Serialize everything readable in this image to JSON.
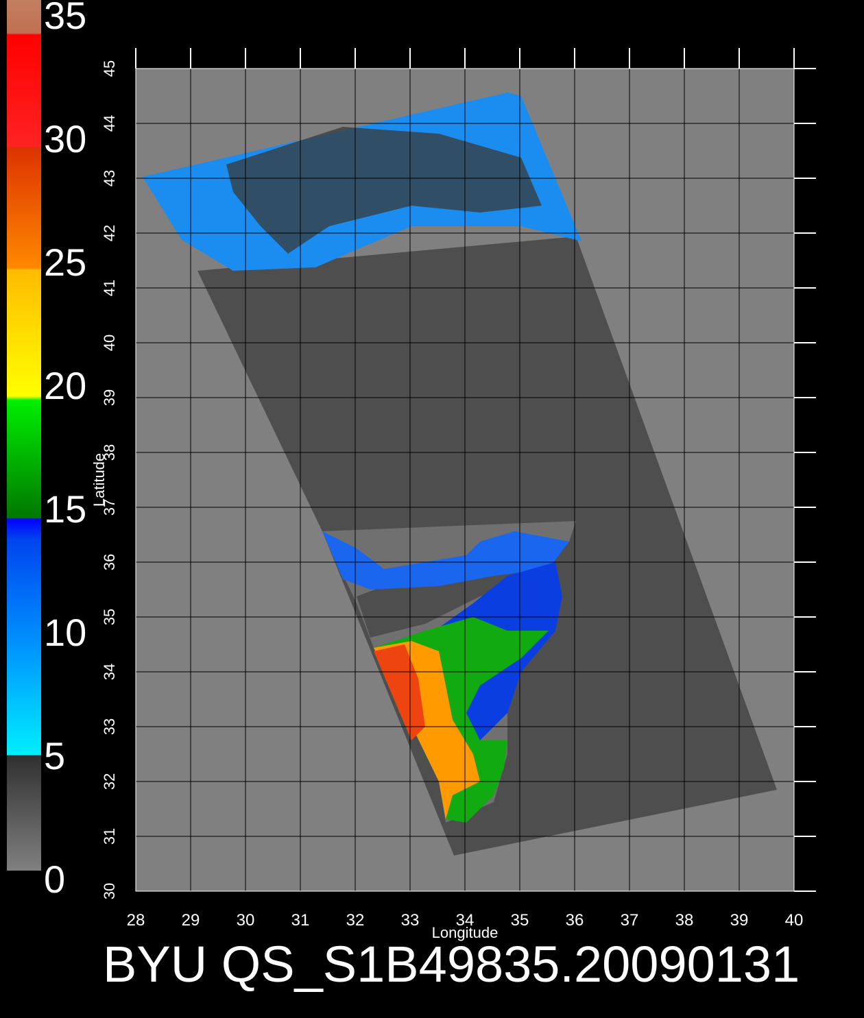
{
  "chart_data": {
    "type": "map",
    "title": "BYU QS_S1B49835.20090131",
    "x_label": "Longitude",
    "y_label": "Latitude",
    "xlim": [
      28,
      40
    ],
    "xticks": [
      28,
      29,
      30,
      31,
      32,
      33,
      34,
      35,
      36,
      37,
      38,
      39,
      40
    ],
    "ylim": [
      30,
      45
    ],
    "yticks": [
      30,
      31,
      32,
      33,
      34,
      35,
      36,
      37,
      38,
      39,
      40,
      41,
      42,
      43,
      44,
      45
    ],
    "colorbar": {
      "lim": [
        0,
        35
      ],
      "ticks": [
        0,
        5,
        10,
        15,
        20,
        25,
        30,
        35
      ]
    },
    "grid": true
  }
}
